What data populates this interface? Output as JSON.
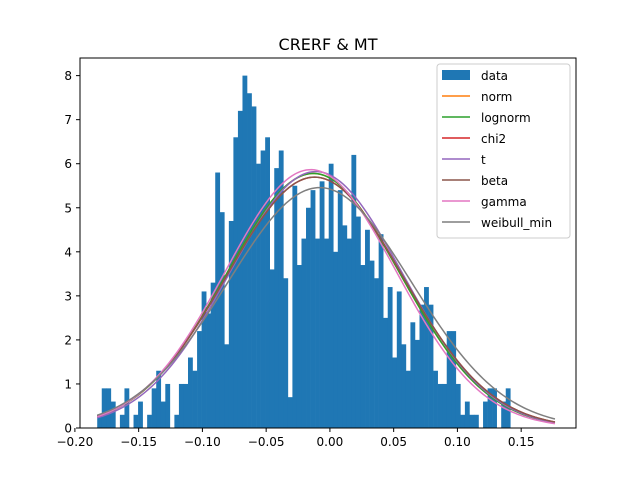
{
  "chart_data": {
    "type": "histogram",
    "title": "CRERF & MT",
    "xlabel": "",
    "ylabel": "",
    "xlim": [
      -0.196,
      0.193
    ],
    "ylim": [
      0,
      8.4
    ],
    "xticks": [
      -0.2,
      -0.15,
      -0.1,
      -0.05,
      0.0,
      0.05,
      0.1,
      0.15
    ],
    "xtick_labels": [
      "−0.20",
      "−0.15",
      "−0.10",
      "−0.05",
      "0.00",
      "0.05",
      "0.10",
      "0.15"
    ],
    "yticks": [
      0,
      1,
      2,
      3,
      4,
      5,
      6,
      7,
      8
    ],
    "ytick_labels": [
      "0",
      "1",
      "2",
      "3",
      "4",
      "5",
      "6",
      "7",
      "8"
    ],
    "grid": false,
    "legend_position": "top-right",
    "histogram": {
      "name": "data",
      "color": "#1f77b4",
      "bin_start": -0.1825,
      "bin_width": 0.00356,
      "heights": [
        0.3,
        0.9,
        0.9,
        0.6,
        0.0,
        0.3,
        0.9,
        0.0,
        0.3,
        0.6,
        0.0,
        0.3,
        0.9,
        1.3,
        0.6,
        1.0,
        0.0,
        0.3,
        1.0,
        1.0,
        1.6,
        1.3,
        2.2,
        3.1,
        2.6,
        3.3,
        5.8,
        4.9,
        1.9,
        4.7,
        6.6,
        7.2,
        8.0,
        7.6,
        7.3,
        6.0,
        6.3,
        6.6,
        3.6,
        5.9,
        6.3,
        3.4,
        0.7,
        5.5,
        3.7,
        4.3,
        5.0,
        5.4,
        4.3,
        5.6,
        4.3,
        6.0,
        4.0,
        5.4,
        4.6,
        4.3,
        6.2,
        4.8,
        3.7,
        4.5,
        3.8,
        3.4,
        4.4,
        2.5,
        3.2,
        1.6,
        3.1,
        1.9,
        1.3,
        2.4,
        2.0,
        2.8,
        3.2,
        2.8,
        1.3,
        1.0,
        1.0,
        2.2,
        2.2,
        1.0,
        0.3,
        0.6,
        0.3,
        0.3,
        0.0,
        0.6,
        0.9,
        0.9,
        0.0,
        0.6,
        0.9
      ],
      "y_value_order": "left-to-right"
    },
    "series": [
      {
        "name": "norm",
        "color": "#ff7f0e",
        "mu": -0.013,
        "sigma": 0.068,
        "area": 0.985,
        "x_range": [
          -0.1825,
          0.1765
        ]
      },
      {
        "name": "lognorm",
        "color": "#2ca02c",
        "mu": -0.013,
        "sigma": 0.068,
        "area": 0.985,
        "x_range": [
          -0.1825,
          0.1765
        ]
      },
      {
        "name": "chi2",
        "color": "#d62728",
        "mu": -0.012,
        "sigma": 0.069,
        "area": 0.985,
        "x_range": [
          -0.1825,
          0.1765
        ]
      },
      {
        "name": "t",
        "color": "#9467bd",
        "mu": -0.011,
        "sigma": 0.0675,
        "area": 0.985,
        "x_range": [
          -0.1825,
          0.1765
        ]
      },
      {
        "name": "beta",
        "color": "#8c564b",
        "mu": -0.012,
        "sigma": 0.069,
        "area": 0.985,
        "x_range": [
          -0.1825,
          0.1765
        ]
      },
      {
        "name": "gamma",
        "color": "#e377c2",
        "mu": -0.015,
        "sigma": 0.067,
        "area": 0.985,
        "x_range": [
          -0.1825,
          0.1765
        ]
      },
      {
        "name": "weibull_min",
        "color": "#7f7f7f",
        "mu": -0.008,
        "sigma": 0.072,
        "area": 0.985,
        "x_range": [
          -0.1825,
          0.1765
        ]
      }
    ]
  }
}
